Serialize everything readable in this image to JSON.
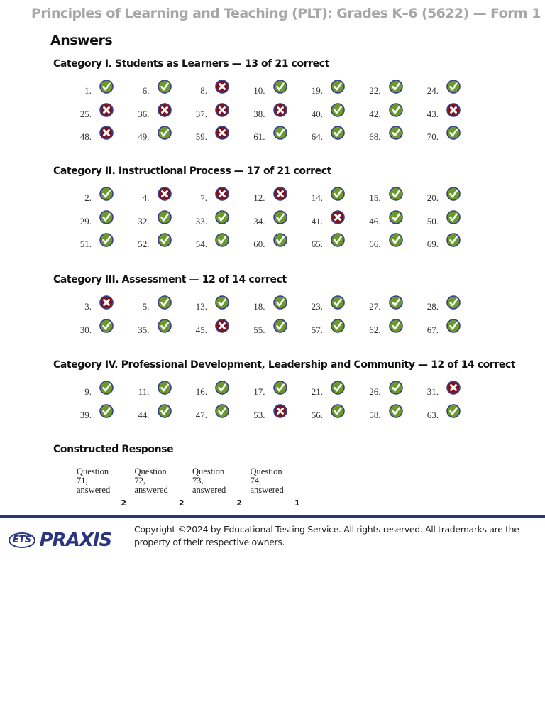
{
  "header": {
    "title": "Principles of Learning and Teaching (PLT): Grades K–6 (5622) — Form 1",
    "section_heading": "Answers"
  },
  "icons": {
    "correct": "check-circle-icon",
    "incorrect": "x-circle-icon",
    "correct_color": "#6a9a2a",
    "incorrect_color": "#7a1620",
    "ring_color": "#3b3f8f"
  },
  "categories": [
    {
      "title": "Category I. Students as Learners — 13 of 21 correct",
      "rows": [
        [
          {
            "q": "1.",
            "ok": true
          },
          {
            "q": "6.",
            "ok": true
          },
          {
            "q": "8.",
            "ok": false
          },
          {
            "q": "10.",
            "ok": true
          },
          {
            "q": "19.",
            "ok": true
          },
          {
            "q": "22.",
            "ok": true
          },
          {
            "q": "24.",
            "ok": true
          }
        ],
        [
          {
            "q": "25.",
            "ok": false
          },
          {
            "q": "36.",
            "ok": false
          },
          {
            "q": "37.",
            "ok": false
          },
          {
            "q": "38.",
            "ok": false
          },
          {
            "q": "40.",
            "ok": true
          },
          {
            "q": "42.",
            "ok": true
          },
          {
            "q": "43.",
            "ok": false
          }
        ],
        [
          {
            "q": "48.",
            "ok": false
          },
          {
            "q": "49.",
            "ok": true
          },
          {
            "q": "59.",
            "ok": false
          },
          {
            "q": "61.",
            "ok": true
          },
          {
            "q": "64.",
            "ok": true
          },
          {
            "q": "68.",
            "ok": true
          },
          {
            "q": "70.",
            "ok": true
          }
        ]
      ]
    },
    {
      "title": "Category II. Instructional Process — 17 of 21 correct",
      "rows": [
        [
          {
            "q": "2.",
            "ok": true
          },
          {
            "q": "4.",
            "ok": false
          },
          {
            "q": "7.",
            "ok": false
          },
          {
            "q": "12.",
            "ok": false
          },
          {
            "q": "14.",
            "ok": true
          },
          {
            "q": "15.",
            "ok": true
          },
          {
            "q": "20.",
            "ok": true
          }
        ],
        [
          {
            "q": "29.",
            "ok": true
          },
          {
            "q": "32.",
            "ok": true
          },
          {
            "q": "33.",
            "ok": true
          },
          {
            "q": "34.",
            "ok": true
          },
          {
            "q": "41.",
            "ok": false
          },
          {
            "q": "46.",
            "ok": true
          },
          {
            "q": "50.",
            "ok": true
          }
        ],
        [
          {
            "q": "51.",
            "ok": true
          },
          {
            "q": "52.",
            "ok": true
          },
          {
            "q": "54.",
            "ok": true
          },
          {
            "q": "60.",
            "ok": true
          },
          {
            "q": "65.",
            "ok": true
          },
          {
            "q": "66.",
            "ok": true
          },
          {
            "q": "69.",
            "ok": true
          }
        ]
      ]
    },
    {
      "title": "Category III. Assessment — 12 of 14 correct",
      "rows": [
        [
          {
            "q": "3.",
            "ok": false
          },
          {
            "q": "5.",
            "ok": true
          },
          {
            "q": "13.",
            "ok": true
          },
          {
            "q": "18.",
            "ok": true
          },
          {
            "q": "23.",
            "ok": true
          },
          {
            "q": "27.",
            "ok": true
          },
          {
            "q": "28.",
            "ok": true
          }
        ],
        [
          {
            "q": "30.",
            "ok": true
          },
          {
            "q": "35.",
            "ok": true
          },
          {
            "q": "45.",
            "ok": false
          },
          {
            "q": "55.",
            "ok": true
          },
          {
            "q": "57.",
            "ok": true
          },
          {
            "q": "62.",
            "ok": true
          },
          {
            "q": "67.",
            "ok": true
          }
        ]
      ]
    },
    {
      "title": "Category IV. Professional Development, Leadership and Community — 12 of 14 correct",
      "rows": [
        [
          {
            "q": "9.",
            "ok": true
          },
          {
            "q": "11.",
            "ok": true
          },
          {
            "q": "16.",
            "ok": true
          },
          {
            "q": "17.",
            "ok": true
          },
          {
            "q": "21.",
            "ok": true
          },
          {
            "q": "26.",
            "ok": true
          },
          {
            "q": "31.",
            "ok": false
          }
        ],
        [
          {
            "q": "39.",
            "ok": true
          },
          {
            "q": "44.",
            "ok": true
          },
          {
            "q": "47.",
            "ok": true
          },
          {
            "q": "53.",
            "ok": false
          },
          {
            "q": "56.",
            "ok": true
          },
          {
            "q": "58.",
            "ok": true
          },
          {
            "q": "63.",
            "ok": true
          }
        ]
      ]
    }
  ],
  "constructed_response": {
    "title": "Constructed Response",
    "items": [
      {
        "label": "Question 71, answered",
        "score": "2"
      },
      {
        "label": "Question 72, answered",
        "score": "2"
      },
      {
        "label": "Question 73, answered",
        "score": "2"
      },
      {
        "label": "Question 74, answered",
        "score": "1"
      }
    ]
  },
  "footer": {
    "logo_badge": "ETS",
    "logo_word": "PRAXIS",
    "brand_color": "#2b3581",
    "copyright": "Copyright ©2024 by Educational Testing Service. All rights reserved. All trademarks are the property of their respective owners."
  }
}
